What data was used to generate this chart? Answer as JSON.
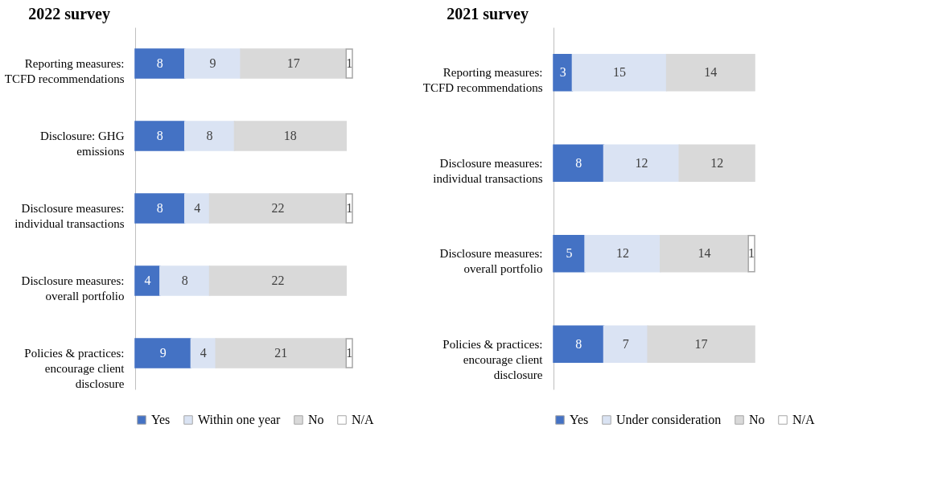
{
  "chart_data": [
    {
      "type": "bar",
      "orientation": "horizontal",
      "stacked": true,
      "title": "2022 survey",
      "data_labels": true,
      "legend": "bottom",
      "categories": [
        "Reporting measures: TCFD recommendations",
        "Disclosure: GHG emissions",
        "Disclosure measures: individual transactions",
        "Disclosure measures: overall portfolio",
        "Policies & practices: encourage client disclosure"
      ],
      "series": [
        {
          "name": "Yes",
          "color": "#4472c4",
          "values": [
            8,
            8,
            8,
            4,
            9
          ]
        },
        {
          "name": "Within one year",
          "color": "#dae3f3",
          "values": [
            9,
            8,
            4,
            8,
            4
          ]
        },
        {
          "name": "No",
          "color": "#d9d9d9",
          "values": [
            17,
            18,
            22,
            22,
            21
          ]
        },
        {
          "name": "N/A",
          "color": "#ffffff",
          "values": [
            1,
            null,
            1,
            null,
            1
          ]
        }
      ]
    },
    {
      "type": "bar",
      "orientation": "horizontal",
      "stacked": true,
      "title": "2021 survey",
      "data_labels": true,
      "legend": "bottom",
      "categories": [
        "Reporting measures: TCFD recommendations",
        "Disclosure measures: individual transactions",
        "Disclosure measures: overall portfolio",
        "Policies & practices: encourage client disclosure"
      ],
      "series": [
        {
          "name": "Yes",
          "color": "#4472c4",
          "values": [
            3,
            8,
            5,
            8
          ]
        },
        {
          "name": "Under consideration",
          "color": "#dae3f3",
          "values": [
            15,
            12,
            12,
            7
          ]
        },
        {
          "name": "No",
          "color": "#d9d9d9",
          "values": [
            14,
            12,
            14,
            17
          ]
        },
        {
          "name": "N/A",
          "color": "#ffffff",
          "values": [
            null,
            null,
            1,
            null
          ]
        }
      ]
    }
  ]
}
